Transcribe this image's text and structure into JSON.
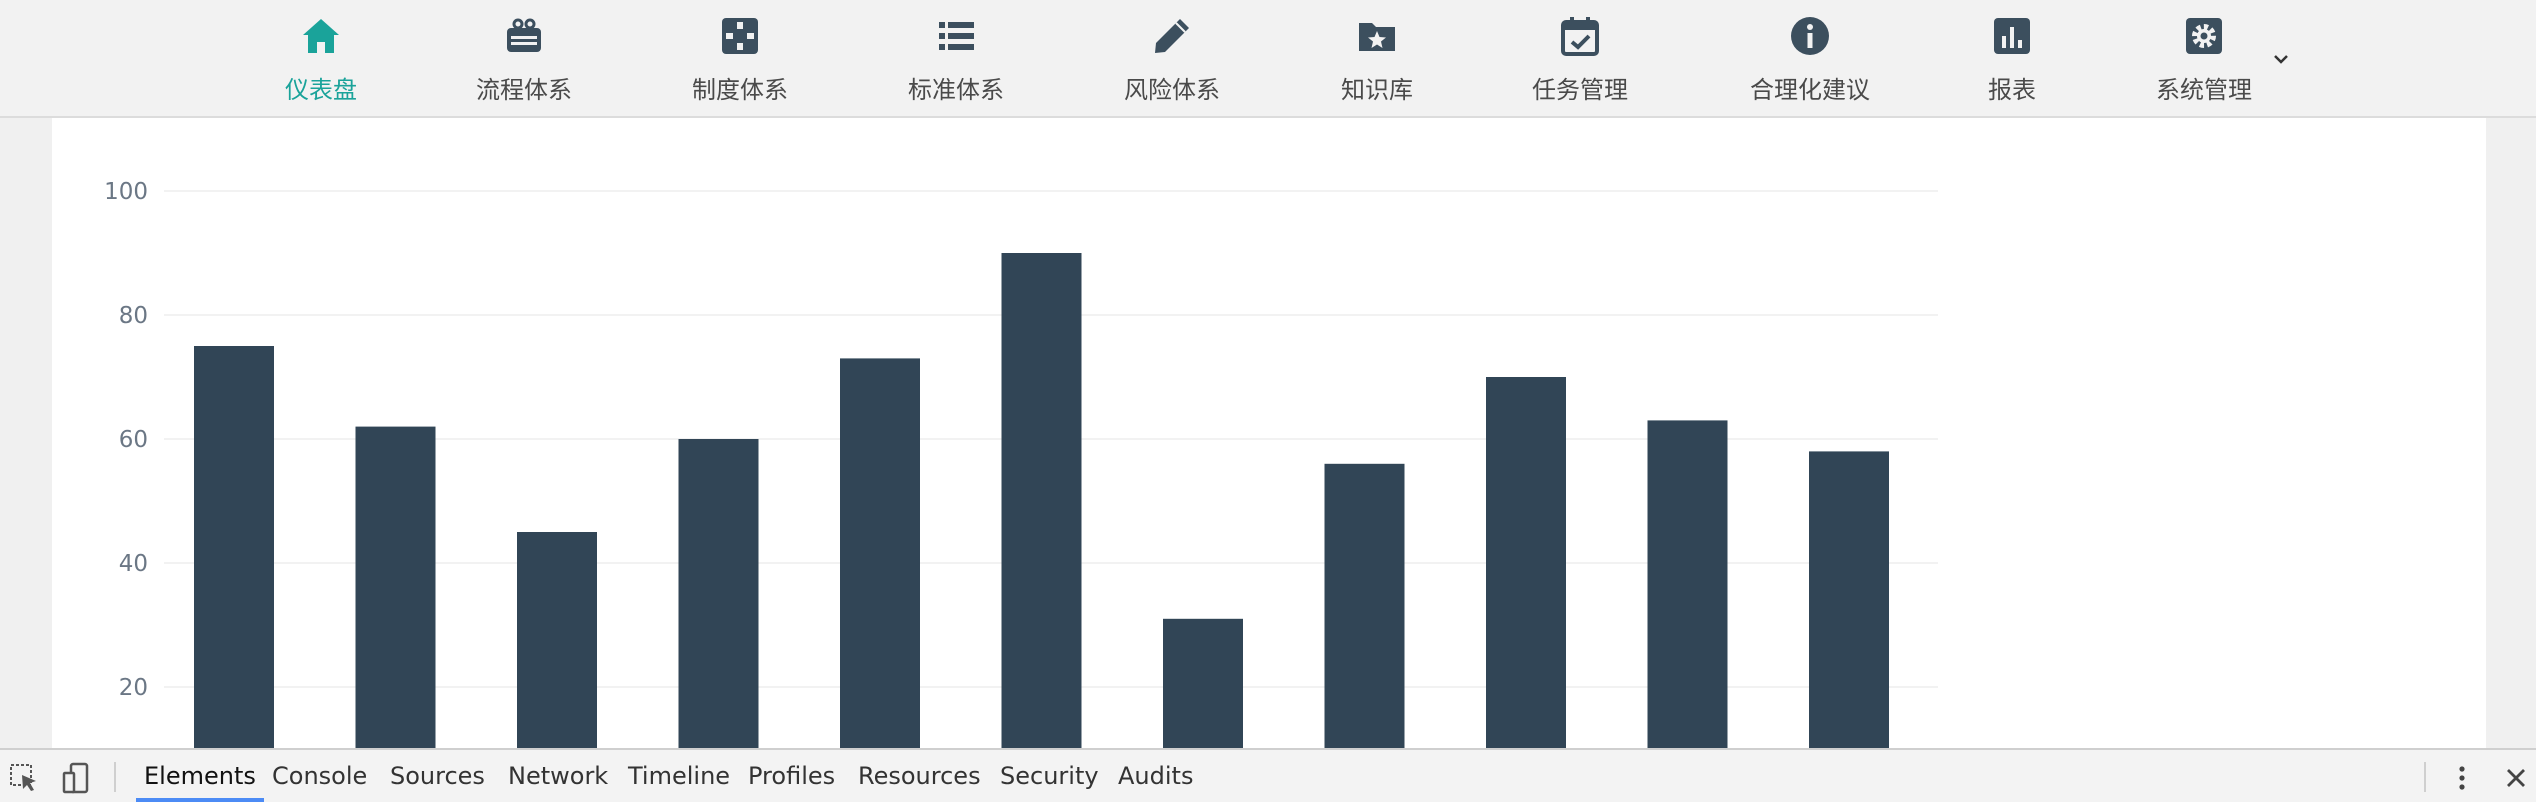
{
  "nav": {
    "items": [
      {
        "label": "仪表盘",
        "icon": "home-icon",
        "active": true
      },
      {
        "label": "流程体系",
        "icon": "process-icon"
      },
      {
        "label": "制度体系",
        "icon": "policy-icon"
      },
      {
        "label": "标准体系",
        "icon": "list-icon"
      },
      {
        "label": "风险体系",
        "icon": "pencil-icon"
      },
      {
        "label": "知识库",
        "icon": "star-folder-icon"
      },
      {
        "label": "任务管理",
        "icon": "calendar-check-icon"
      },
      {
        "label": "合理化建议",
        "icon": "info-icon"
      },
      {
        "label": "报表",
        "icon": "bar-chart-icon"
      },
      {
        "label": "系统管理",
        "icon": "gear-icon"
      }
    ],
    "active_color": "#1aa39a",
    "more_icon": "chevron-down-icon"
  },
  "chart_data": {
    "type": "bar",
    "categories": [
      "",
      "",
      "",
      "",
      "",
      "",
      "",
      "",
      "",
      "",
      ""
    ],
    "values": [
      75,
      62,
      45,
      60,
      73,
      90,
      31,
      56,
      70,
      63,
      58
    ],
    "y_ticks": [
      "100",
      "80",
      "60",
      "40",
      "20"
    ],
    "ylim": [
      0,
      100
    ],
    "grid": true,
    "bar_color": "#314556",
    "title": "",
    "xlabel": "",
    "ylabel": ""
  },
  "devtools": {
    "tabs": [
      "Elements",
      "Console",
      "Sources",
      "Network",
      "Timeline",
      "Profiles",
      "Resources",
      "Security",
      "Audits"
    ],
    "active_tab": "Elements",
    "tools": [
      "inspect-icon",
      "device-mode-icon"
    ],
    "right_tools": [
      "more-options-icon",
      "close-icon"
    ]
  }
}
